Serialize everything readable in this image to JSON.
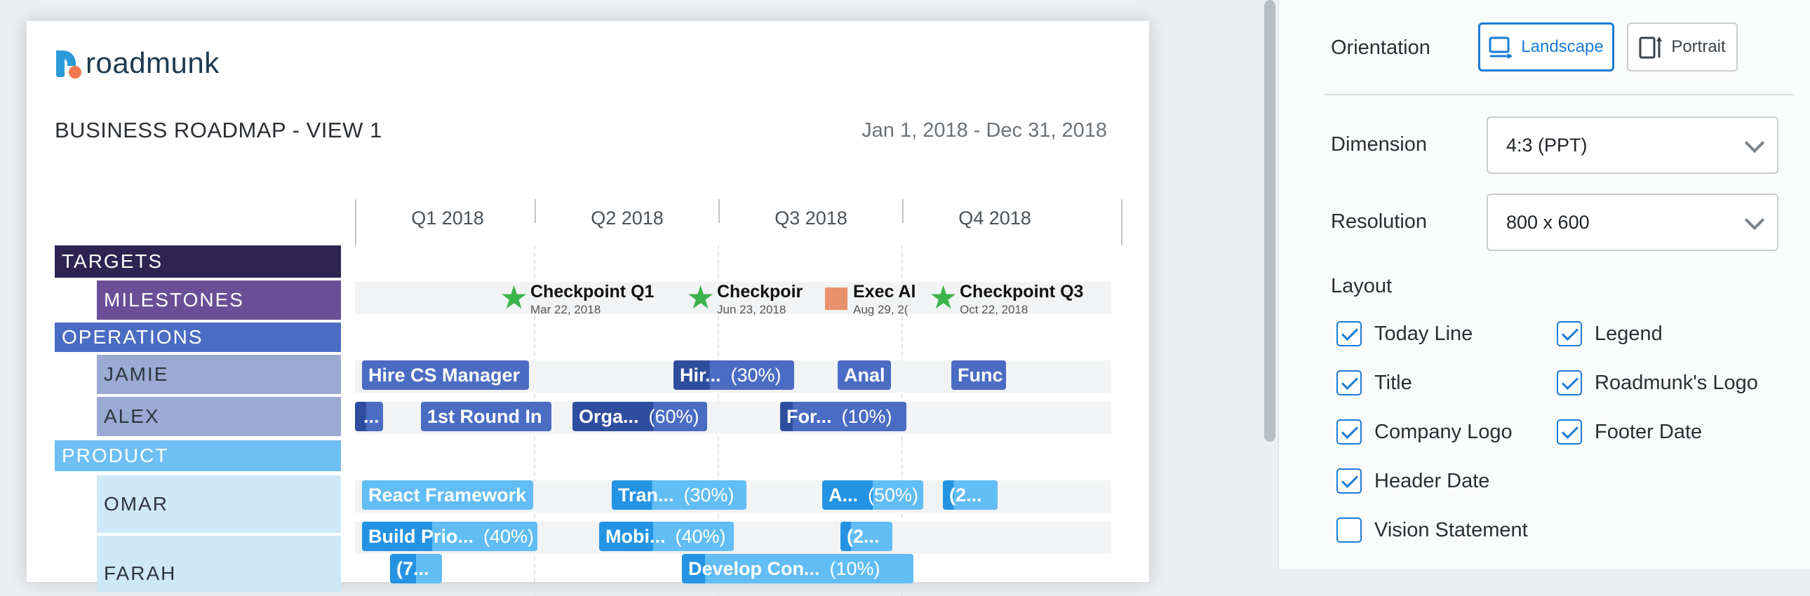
{
  "brand": {
    "logo_text": "roadmunk"
  },
  "roadmap": {
    "title": "BUSINESS ROADMAP - VIEW 1",
    "date_range": "Jan 1, 2018 - Dec 31, 2018",
    "quarters": [
      "Q1 2018",
      "Q2 2018",
      "Q3 2018",
      "Q4 2018"
    ],
    "groups": {
      "targets": "TARGETS",
      "milestones": "MILESTONES",
      "operations": "OPERATIONS",
      "jamie": "JAMIE",
      "alex": "ALEX",
      "product": "PRODUCT",
      "omar": "OMAR",
      "farah": "FARAH"
    },
    "milestones": [
      {
        "title": "Checkpoint Q1",
        "date": "Mar 22, 2018"
      },
      {
        "title": "Checkpoir",
        "date": "Jun 23, 2018"
      },
      {
        "title": "Exec Al",
        "date": "Aug 29, 2("
      },
      {
        "title": "Checkpoint Q3",
        "date": "Oct 22, 2018"
      }
    ],
    "jamie_bars": [
      {
        "title": "Hire CS Manager",
        "pct": ""
      },
      {
        "title": "Hir...",
        "pct": "(30%)"
      },
      {
        "title": "Anal",
        "pct": ""
      },
      {
        "title": "Func",
        "pct": ""
      }
    ],
    "alex_bars": [
      {
        "title": "...",
        "pct": ""
      },
      {
        "title": "1st Round In",
        "pct": ""
      },
      {
        "title": "Orga...",
        "pct": "(60%)"
      },
      {
        "title": "For...",
        "pct": "(10%)"
      }
    ],
    "omar_bars": [
      {
        "title": "React Framework",
        "pct": ""
      },
      {
        "title": "Tran...",
        "pct": "(30%)"
      },
      {
        "title": "A...",
        "pct": "(50%)"
      },
      {
        "title": "(2...",
        "pct": ""
      }
    ],
    "farah_bars": [
      {
        "title": "Build Prio...",
        "pct": "(40%)"
      },
      {
        "title": "Mobi...",
        "pct": "(40%)"
      },
      {
        "title": "(2...",
        "pct": ""
      },
      {
        "title": "(7...",
        "pct": ""
      },
      {
        "title": "Develop Con...",
        "pct": "(10%)"
      }
    ]
  },
  "panel": {
    "orientation_label": "Orientation",
    "landscape": "Landscape",
    "portrait": "Portrait",
    "dimension_label": "Dimension",
    "dimension_value": "4:3 (PPT)",
    "resolution_label": "Resolution",
    "resolution_value": "800 x 600",
    "layout_label": "Layout",
    "options": {
      "today_line": {
        "label": "Today Line",
        "checked": true
      },
      "legend": {
        "label": "Legend",
        "checked": true
      },
      "title": {
        "label": "Title",
        "checked": true
      },
      "roadmunk_logo": {
        "label": "Roadmunk's Logo",
        "checked": true
      },
      "company_logo": {
        "label": "Company Logo",
        "checked": true
      },
      "footer_date": {
        "label": "Footer Date",
        "checked": true
      },
      "header_date": {
        "label": "Header Date",
        "checked": true
      },
      "vision_statement": {
        "label": "Vision Statement",
        "checked": false
      }
    }
  },
  "colors": {
    "targets": "#2e2452",
    "milestones": "#6a4f96",
    "operations": "#4a6cc2",
    "ops_sub": "#9aaad3",
    "product": "#6dbff4",
    "product_sub": "#cfe8f8",
    "ops_bar": "#4a6cc2",
    "ops_bar_dark": "#2e4d9e",
    "prod_bar": "#62bdf4",
    "prod_bar_dark": "#2593e3",
    "accent": "#1a7bd5"
  }
}
